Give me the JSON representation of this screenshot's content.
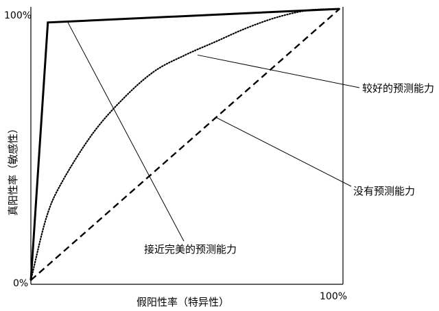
{
  "chart_data": {
    "type": "line",
    "xlabel": "假阳性率（特异性）",
    "ylabel": "真阳性率（敏感性）",
    "xlim": [
      0,
      100
    ],
    "ylim": [
      0,
      100
    ],
    "tick_labels": {
      "y_top": "100%",
      "origin": "0%",
      "x_right": "100%"
    },
    "grid": false,
    "series": [
      {
        "name": "接近完美的预测能力",
        "style": "solid-thick",
        "x": [
          0,
          5.5,
          100
        ],
        "y": [
          0,
          95,
          100
        ]
      },
      {
        "name": "较好的预测能力",
        "style": "dotted",
        "x": [
          0,
          5,
          10,
          20,
          30,
          40,
          50,
          60,
          70,
          80,
          90,
          100
        ],
        "y": [
          0,
          23,
          36,
          54,
          67,
          77,
          83,
          88,
          93,
          97,
          99.5,
          100
        ]
      },
      {
        "name": "没有预测能力",
        "style": "dashed",
        "x": [
          0,
          100
        ],
        "y": [
          0,
          100
        ]
      }
    ],
    "annotations": [
      {
        "text": "较好的预测能力",
        "series": 1,
        "point": [
          54,
          83
        ]
      },
      {
        "text": "没有预测能力",
        "series": 2,
        "point": [
          60,
          60
        ]
      },
      {
        "text": "接近完美的预测能力",
        "series": 0,
        "point": [
          12,
          95
        ]
      }
    ]
  }
}
